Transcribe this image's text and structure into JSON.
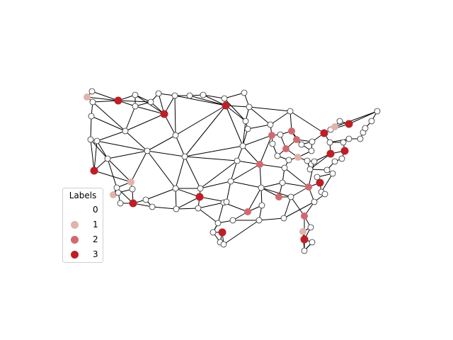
{
  "legend": {
    "title": "Labels",
    "entries": [
      {
        "label": "0",
        "color": "#ffffff"
      },
      {
        "label": "1",
        "color": "#e2b3ab"
      },
      {
        "label": "2",
        "color": "#d1696f"
      },
      {
        "label": "3",
        "color": "#bc1f28"
      }
    ]
  },
  "graph": {
    "node_outline": "#333333",
    "edge_color": "#000000"
  }
}
